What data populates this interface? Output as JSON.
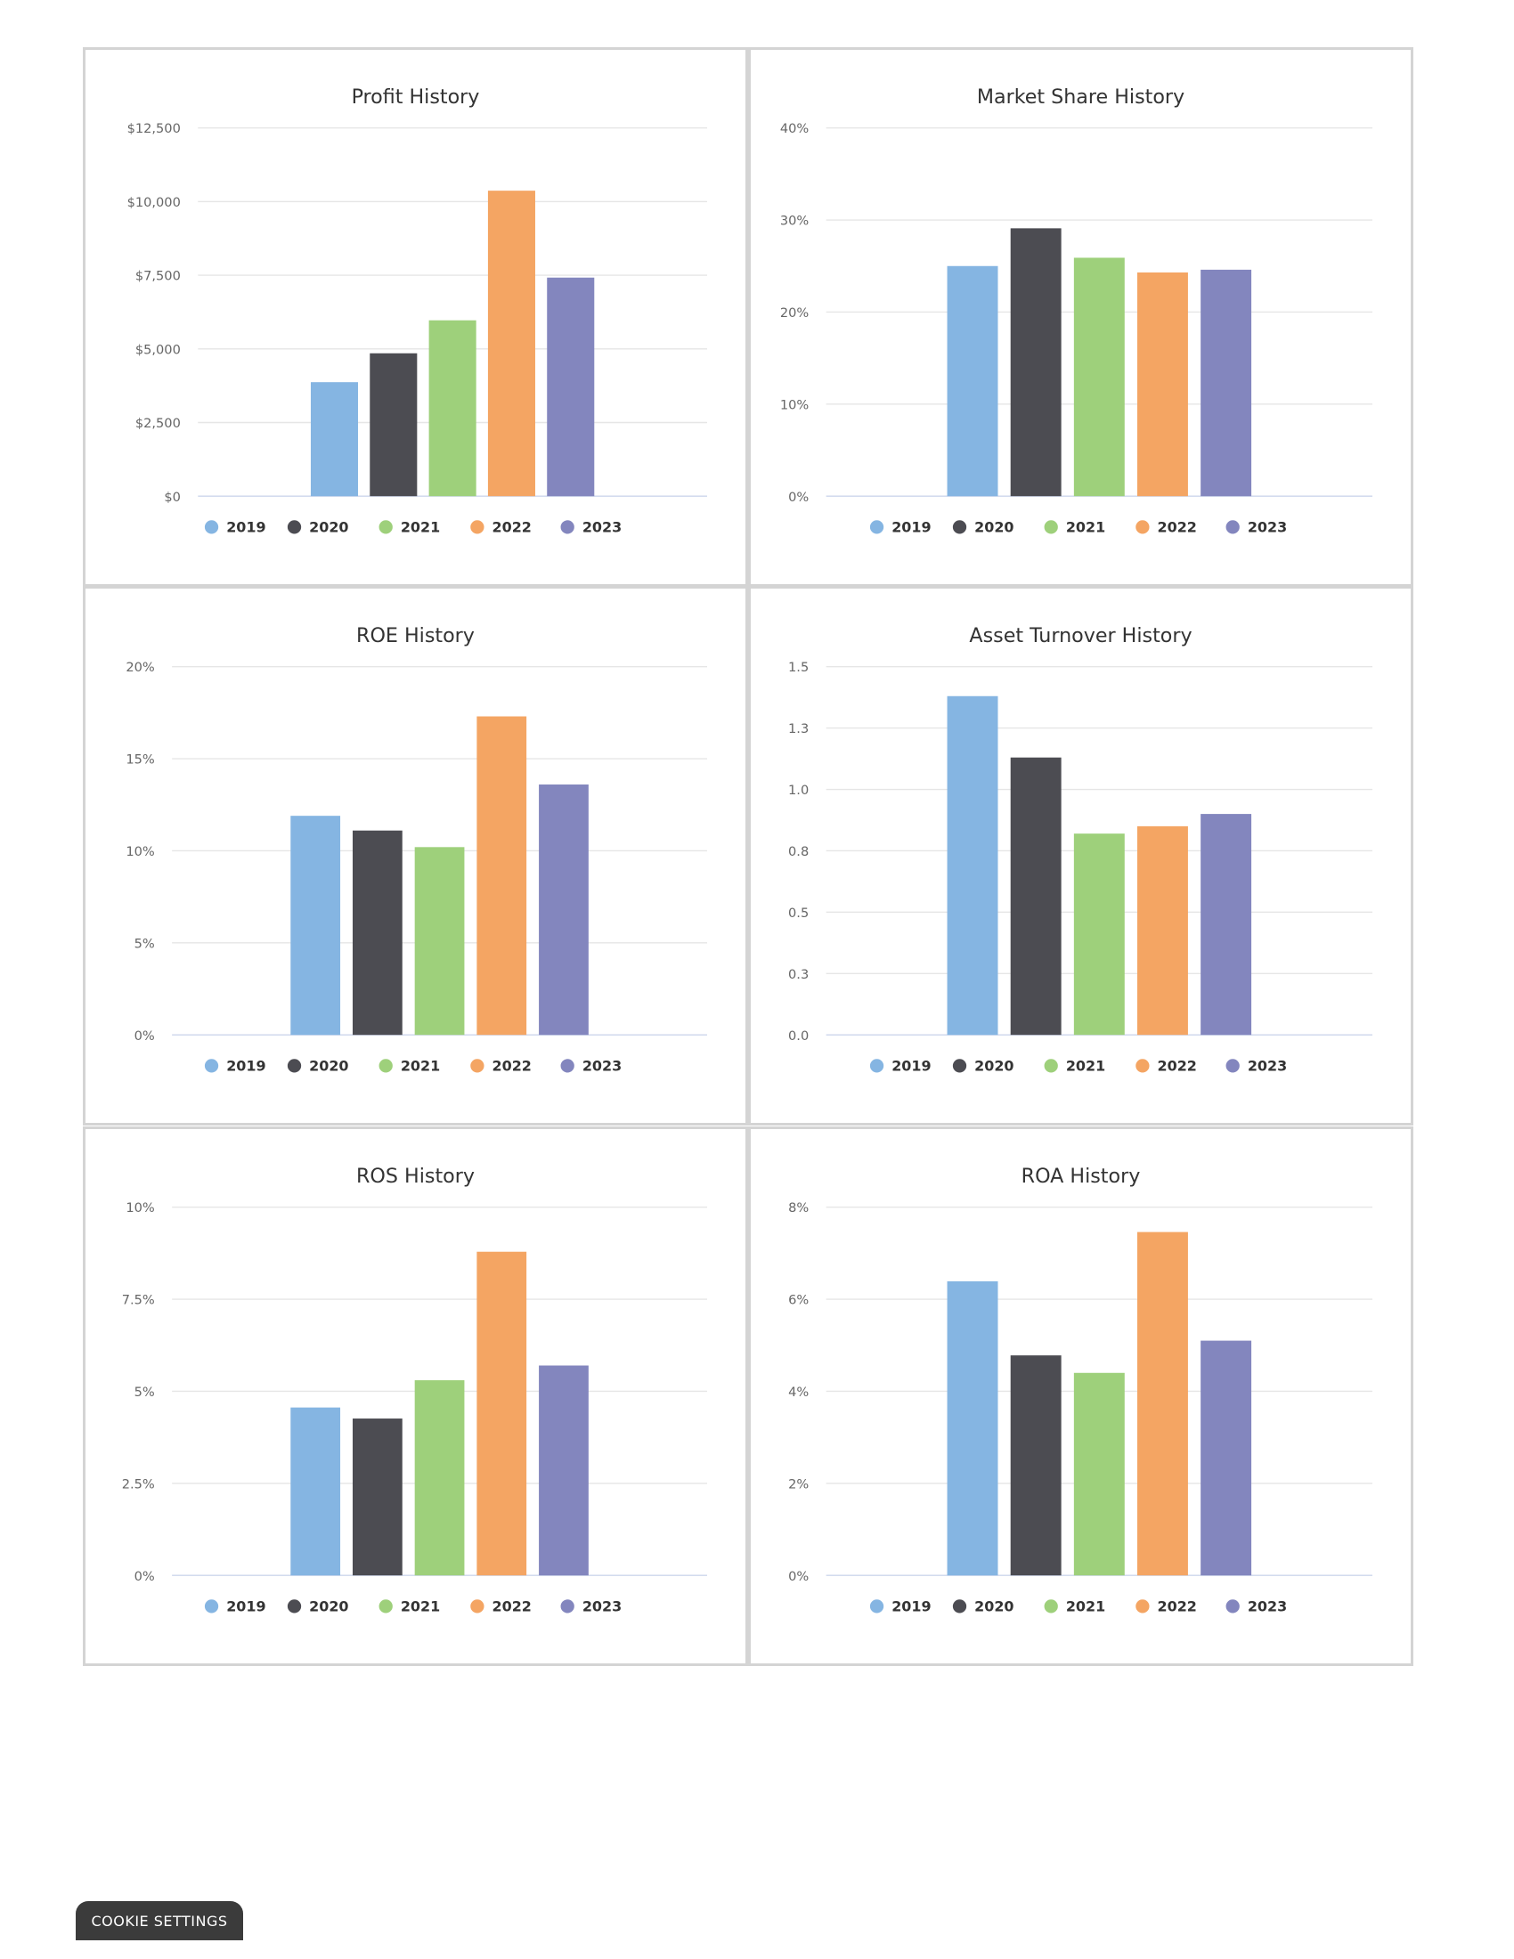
{
  "legend": [
    "2019",
    "2020",
    "2021",
    "2022",
    "2023"
  ],
  "colors": [
    "#85b5e2",
    "#4c4c52",
    "#9ed07b",
    "#f4a563",
    "#8386be"
  ],
  "cookie_button": "COOKIE SETTINGS",
  "chart_data": [
    {
      "type": "bar",
      "title": "Profit History",
      "categories": [
        "2019",
        "2020",
        "2021",
        "2022",
        "2023"
      ],
      "values": [
        3870,
        4850,
        5970,
        10370,
        7420
      ],
      "ylim": [
        0,
        12500
      ],
      "yticks": [
        0,
        2500,
        5000,
        7500,
        10000,
        12500
      ],
      "ytick_labels": [
        "$0",
        "$2,500",
        "$5,000",
        "$7,500",
        "$10,000",
        "$12,500"
      ],
      "grid": true,
      "legend": "bottom"
    },
    {
      "type": "bar",
      "title": "Market Share History",
      "categories": [
        "2019",
        "2020",
        "2021",
        "2022",
        "2023"
      ],
      "values": [
        25.0,
        29.1,
        25.9,
        24.3,
        24.6
      ],
      "ylim": [
        0,
        40
      ],
      "yticks": [
        0,
        10,
        20,
        30,
        40
      ],
      "ytick_labels": [
        "0%",
        "10%",
        "20%",
        "30%",
        "40%"
      ],
      "grid": true,
      "legend": "bottom"
    },
    {
      "type": "bar",
      "title": "ROE History",
      "categories": [
        "2019",
        "2020",
        "2021",
        "2022",
        "2023"
      ],
      "values": [
        11.9,
        11.1,
        10.2,
        17.3,
        13.6
      ],
      "ylim": [
        0,
        20
      ],
      "yticks": [
        0,
        5,
        10,
        15,
        20
      ],
      "ytick_labels": [
        "0%",
        "5%",
        "10%",
        "15%",
        "20%"
      ],
      "grid": true,
      "legend": "bottom"
    },
    {
      "type": "bar",
      "title": "Asset Turnover History",
      "categories": [
        "2019",
        "2020",
        "2021",
        "2022",
        "2023"
      ],
      "values": [
        1.38,
        1.13,
        0.82,
        0.85,
        0.9
      ],
      "ylim": [
        0,
        1.5
      ],
      "yticks": [
        0,
        0.25,
        0.5,
        0.75,
        1.0,
        1.25,
        1.5
      ],
      "ytick_labels": [
        "0.0",
        "0.3",
        "0.5",
        "0.8",
        "1.0",
        "1.3",
        "1.5"
      ],
      "grid": true,
      "legend": "bottom"
    },
    {
      "type": "bar",
      "title": "ROS History",
      "categories": [
        "2019",
        "2020",
        "2021",
        "2022",
        "2023"
      ],
      "values": [
        4.56,
        4.26,
        5.3,
        8.79,
        5.7
      ],
      "ylim": [
        0,
        10
      ],
      "yticks": [
        0,
        2.5,
        5,
        7.5,
        10
      ],
      "ytick_labels": [
        "0%",
        "2.5%",
        "5%",
        "7.5%",
        "10%"
      ],
      "grid": true,
      "legend": "bottom"
    },
    {
      "type": "bar",
      "title": "ROA History",
      "categories": [
        "2019",
        "2020",
        "2021",
        "2022",
        "2023"
      ],
      "values": [
        6.39,
        4.78,
        4.4,
        7.46,
        5.1
      ],
      "ylim": [
        0,
        8
      ],
      "yticks": [
        0,
        2,
        4,
        6,
        8
      ],
      "ytick_labels": [
        "0%",
        "2%",
        "4%",
        "6%",
        "8%"
      ],
      "grid": true,
      "legend": "bottom"
    }
  ]
}
